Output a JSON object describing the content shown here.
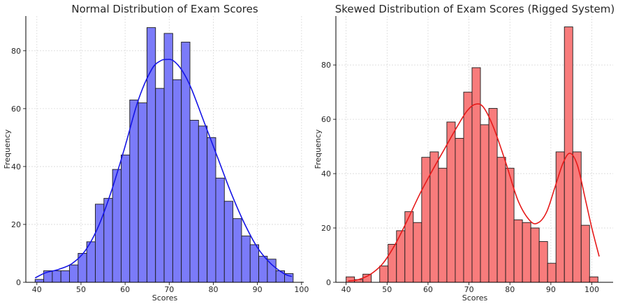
{
  "chart_data": [
    {
      "type": "bar",
      "title": "Normal Distribution of Exam Scores",
      "xlabel": "Scores",
      "ylabel": "Frequency",
      "xlim": [
        37.5,
        100.5
      ],
      "ylim": [
        0,
        92
      ],
      "xticks": [
        40,
        50,
        60,
        70,
        80,
        90,
        100
      ],
      "yticks": [
        0,
        20,
        40,
        60,
        80
      ],
      "grid": true,
      "bar_color": "#7b7bf9",
      "edge_color": "#1a1a1a",
      "curve_color": "#1515e6",
      "bins": {
        "start": 39.6,
        "width": 1.95,
        "counts": [
          1,
          4,
          4,
          4,
          6,
          10,
          14,
          27,
          29,
          39,
          44,
          63,
          62,
          88,
          67,
          86,
          70,
          83,
          56,
          54,
          50,
          36,
          28,
          22,
          16,
          13,
          9,
          8,
          4,
          3
        ]
      },
      "kde": {
        "x": [
          39.6,
          42,
          45,
          48,
          51,
          54,
          57,
          60,
          63,
          66,
          68,
          69.5,
          71,
          73,
          75,
          78,
          81,
          84,
          87,
          90,
          93,
          96,
          97.8
        ],
        "y": [
          1.5,
          3.3,
          4.5,
          6.5,
          11,
          19.5,
          32,
          47,
          63,
          73.5,
          76.5,
          77,
          76.5,
          73,
          67,
          55,
          43,
          31,
          20.5,
          12,
          6.5,
          3,
          2
        ]
      }
    },
    {
      "type": "bar",
      "title": "Skewed Distribution of Exam Scores (Rigged System)",
      "xlabel": "Scores",
      "ylabel": "Frequency",
      "xlim": [
        37.5,
        105.2
      ],
      "ylim": [
        0,
        98
      ],
      "xticks": [
        40,
        50,
        60,
        70,
        80,
        90,
        100
      ],
      "yticks": [
        0,
        20,
        40,
        60,
        80
      ],
      "grid": true,
      "bar_color": "#f87c7c",
      "edge_color": "#1a1a1a",
      "curve_color": "#e61a1a",
      "bins": {
        "start": 40,
        "width": 2.05,
        "counts": [
          2,
          1,
          3,
          0,
          6,
          14,
          19,
          26,
          22,
          46,
          48,
          42,
          59,
          53,
          70,
          79,
          58,
          64,
          46,
          42,
          23,
          22,
          20,
          15,
          7,
          48,
          94,
          48,
          21,
          2
        ]
      },
      "kde": {
        "x": [
          40.5,
          43,
          46,
          49,
          52,
          55,
          58,
          61,
          64,
          67,
          69.5,
          71.5,
          73.5,
          76,
          79,
          82,
          85,
          87,
          89,
          91,
          93,
          94.7,
          96.5,
          98.5,
          100,
          101.8
        ],
        "y": [
          0.5,
          1,
          3,
          7,
          14,
          23,
          32.5,
          41,
          49,
          57,
          63,
          65.5,
          64.5,
          57,
          44,
          30,
          22.5,
          22,
          26,
          35,
          44,
          47.5,
          43,
          30,
          20,
          9.5
        ]
      }
    }
  ]
}
